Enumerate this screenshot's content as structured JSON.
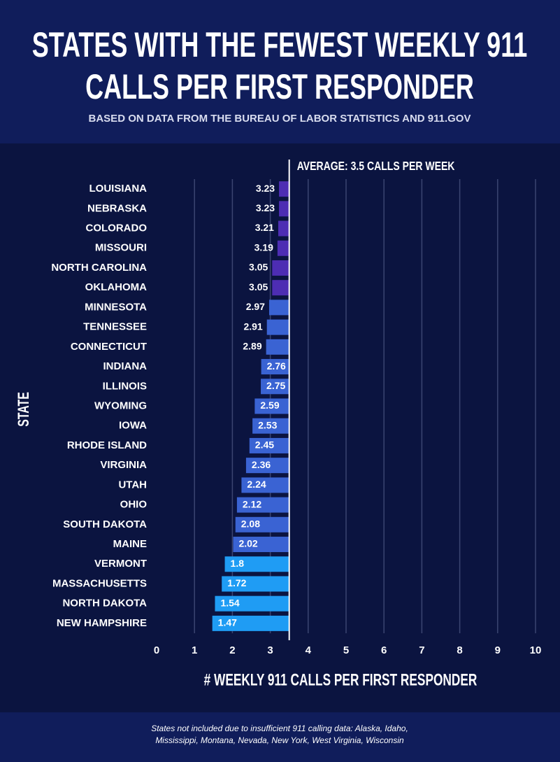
{
  "chart_data": {
    "type": "bar",
    "orientation": "horizontal",
    "title": [
      "STATES WITH THE FEWEST WEEKLY 911",
      "CALLS PER FIRST RESPONDER"
    ],
    "subtitle": "BASED ON DATA FROM THE BUREAU OF LABOR STATISTICS AND 911.GOV",
    "x_label": "# WEEKLY 911 CALLS PER FIRST RESPONDER",
    "y_label": "STATE",
    "categories": [
      "LOUISIANA",
      "NEBRASKA",
      "COLORADO",
      "MISSOURI",
      "NORTH CAROLINA",
      "OKLAHOMA",
      "MINNESOTA",
      "TENNESSEE",
      "CONNECTICUT",
      "INDIANA",
      "ILLINOIS",
      "WYOMING",
      "IOWA",
      "RHODE ISLAND",
      "VIRGINIA",
      "UTAH",
      "OHIO",
      "SOUTH DAKOTA",
      "MAINE",
      "VERMONT",
      "MASSACHUSETTS",
      "NORTH DAKOTA",
      "NEW HAMPSHIRE"
    ],
    "values": [
      3.23,
      3.23,
      3.21,
      3.19,
      3.05,
      3.05,
      2.97,
      2.91,
      2.89,
      2.76,
      2.75,
      2.59,
      2.53,
      2.45,
      2.36,
      2.24,
      2.12,
      2.08,
      2.02,
      1.8,
      1.72,
      1.54,
      1.47
    ],
    "colors": [
      "#4d2db3",
      "#4d2db3",
      "#4d2db3",
      "#4d2db3",
      "#4d2db3",
      "#4d2db3",
      "#3a63d3",
      "#3a63d3",
      "#3a63d3",
      "#3a63d3",
      "#3a63d3",
      "#3a63d3",
      "#3a63d3",
      "#3a63d3",
      "#3a63d3",
      "#3a63d3",
      "#3a63d3",
      "#3a63d3",
      "#3a63d3",
      "#1f9cf4",
      "#1f9cf4",
      "#1f9cf4",
      "#1f9cf4"
    ],
    "reference": {
      "value": 3.5,
      "label": "AVERAGE: 3.5 CALLS PER WEEK"
    },
    "xlim": [
      0,
      10
    ],
    "xticks": [
      0,
      1,
      2,
      3,
      4,
      5,
      6,
      7,
      8,
      9,
      10
    ],
    "grid": true,
    "footnote": [
      "States not included due to insufficient 911 calling data: Alaska, Idaho,",
      "Mississippi, Montana, Nevada, New York, West Virginia, Wisconsin"
    ]
  }
}
